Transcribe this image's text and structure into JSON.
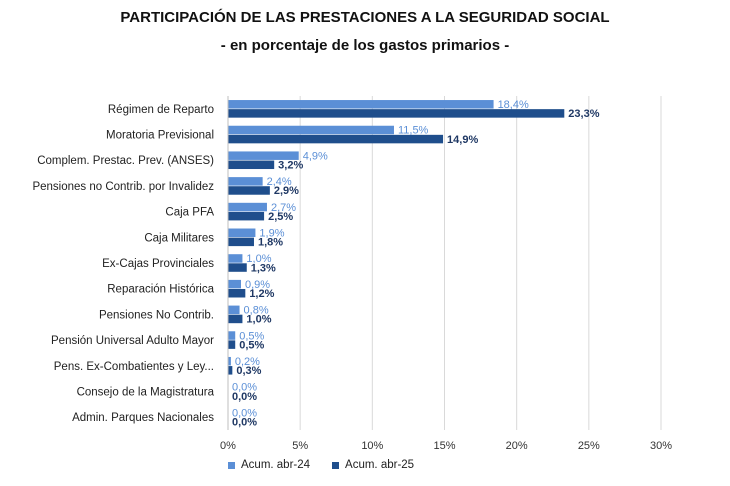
{
  "chart_data": {
    "type": "bar",
    "orientation": "horizontal",
    "title": "PARTICIPACIÓN DE LAS PRESTACIONES A LA SEGURIDAD SOCIAL",
    "subtitle": "- en porcentaje de los gastos primarios -",
    "categories": [
      "Régimen de Reparto",
      "Moratoria Previsional",
      "Complem. Prestac. Prev. (ANSES)",
      "Pensiones no Contrib. por Invalidez",
      "Caja PFA",
      "Caja Militares",
      "Ex-Cajas Provinciales",
      "Reparación Histórica",
      "Pensiones No Contrib.",
      "Pensión Universal Adulto Mayor",
      "Pens. Ex-Combatientes y Ley...",
      "Consejo de la Magistratura",
      "Admin. Parques Nacionales"
    ],
    "series": [
      {
        "name": "Acum. abr-24",
        "color": "#5b8fd6",
        "values": [
          18.4,
          11.5,
          4.9,
          2.4,
          2.7,
          1.9,
          1.0,
          0.9,
          0.8,
          0.5,
          0.2,
          0.0,
          0.0
        ],
        "labels": [
          "18,4%",
          "11,5%",
          "4,9%",
          "2,4%",
          "2,7%",
          "1,9%",
          "1,0%",
          "0,9%",
          "0,8%",
          "0,5%",
          "0,2%",
          "0,0%",
          "0,0%"
        ]
      },
      {
        "name": "Acum. abr-25",
        "color": "#1f4e8c",
        "values": [
          23.3,
          14.9,
          3.2,
          2.9,
          2.5,
          1.8,
          1.3,
          1.2,
          1.0,
          0.5,
          0.3,
          0.0,
          0.0
        ],
        "labels": [
          "23,3%",
          "14,9%",
          "3,2%",
          "2,9%",
          "2,5%",
          "1,8%",
          "1,3%",
          "1,2%",
          "1,0%",
          "0,5%",
          "0,3%",
          "0,0%",
          "0,0%"
        ]
      }
    ],
    "xlim": [
      0,
      30
    ],
    "xticks": [
      0,
      5,
      10,
      15,
      20,
      25,
      30
    ],
    "xtick_labels": [
      "0%",
      "5%",
      "10%",
      "15%",
      "20%",
      "25%",
      "30%"
    ],
    "grid": "vertical",
    "legend_position": "bottom"
  }
}
